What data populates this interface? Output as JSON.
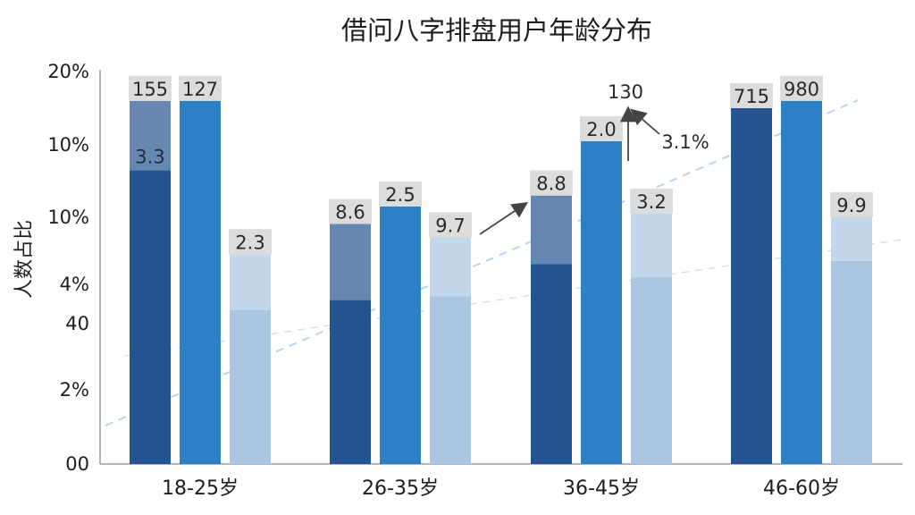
{
  "title": "借问八字排盘用户年龄分布",
  "colors": {
    "dark": "#235390",
    "medium": "#2e80c6",
    "light": "#a9c6e2",
    "label_box": "#dcdcdc",
    "trend": "#aac8e4"
  },
  "chart_data": {
    "type": "bar",
    "title": "借问八字排盘用户年龄分布",
    "xlabel": "",
    "ylabel": "人数占比",
    "y_tick_labels": [
      "00",
      "2%",
      "40",
      "4%",
      "10%",
      "10%",
      "20%"
    ],
    "categories": [
      "18-25岁",
      "26-35岁",
      "36-45岁",
      "46-60岁"
    ],
    "grid": false,
    "legend": "none",
    "bars": [
      {
        "category": "18-25岁",
        "series": "dark",
        "value_tick": 4.65,
        "stack_tick": 5.6,
        "segment_label": "3.3",
        "top_label": "155"
      },
      {
        "category": "18-25岁",
        "series": "medium",
        "value_tick": 5.6,
        "top_label": "127"
      },
      {
        "category": "18-25岁",
        "series": "light",
        "value_tick": 2.35,
        "stack_tick": 3.45,
        "top_label": "2.3"
      },
      {
        "category": "26-35岁",
        "series": "dark",
        "value_tick": 2.6,
        "stack_tick": 3.9,
        "top_label": "8.6"
      },
      {
        "category": "26-35岁",
        "series": "medium",
        "value_tick": 4.15,
        "top_label": "2.5"
      },
      {
        "category": "26-35岁",
        "series": "light",
        "value_tick": 2.7,
        "stack_tick": 3.7,
        "top_label": "9.7"
      },
      {
        "category": "36-45岁",
        "series": "dark",
        "value_tick": 3.3,
        "stack_tick": 4.3,
        "top_label": "8.8"
      },
      {
        "category": "36-45岁",
        "series": "medium",
        "value_tick": 5.05,
        "top_label": "2.0"
      },
      {
        "category": "36-45岁",
        "series": "light",
        "value_tick": 3.1,
        "stack_tick": 4.05,
        "top_label": "3.2"
      },
      {
        "category": "46-60岁",
        "series": "dark",
        "value_tick": 5.5,
        "top_label": "715"
      },
      {
        "category": "46-60岁",
        "series": "medium",
        "value_tick": 5.6,
        "top_label": "980"
      },
      {
        "category": "46-60岁",
        "series": "light",
        "value_tick": 3.35,
        "stack_tick": 4.0,
        "top_label": "9.9"
      }
    ],
    "annotations": [
      {
        "text": "130",
        "category": "36-45岁"
      },
      {
        "text": "3.1%",
        "category": "36-45岁"
      }
    ]
  }
}
